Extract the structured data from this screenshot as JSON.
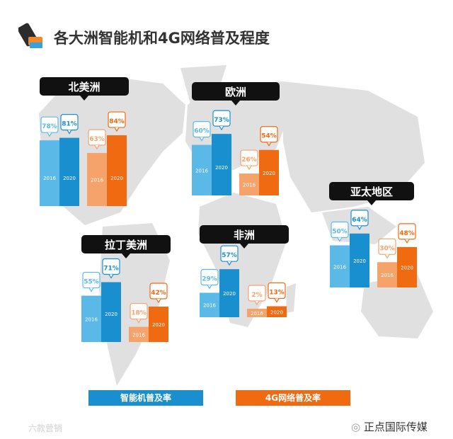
{
  "title": "各大洲智能机和4G网络普及程度",
  "colors": {
    "smart2016": "#5bb9e8",
    "smart2020": "#1a8fd0",
    "lte2016": "#f6a36b",
    "lte2020": "#ef6a10",
    "label_bg": "#111111",
    "map": "#e0e0e0"
  },
  "chart_data": {
    "type": "bar",
    "unit": "%",
    "series": [
      {
        "name": "智能机普及率",
        "years": [
          "2016",
          "2020"
        ]
      },
      {
        "name": "4G网络普及率",
        "years": [
          "2016",
          "2020"
        ]
      }
    ],
    "regions": [
      {
        "name": "北美洲",
        "smartphone": [
          78,
          81
        ],
        "lte": [
          63,
          84
        ]
      },
      {
        "name": "欧洲",
        "smartphone": [
          60,
          73
        ],
        "lte": [
          26,
          54
        ]
      },
      {
        "name": "拉丁美洲",
        "smartphone": [
          55,
          71
        ],
        "lte": [
          18,
          42
        ]
      },
      {
        "name": "非洲",
        "smartphone": [
          29,
          57
        ],
        "lte": [
          2,
          13
        ]
      },
      {
        "name": "亚太地区",
        "smartphone": [
          50,
          64
        ],
        "lte": [
          30,
          48
        ]
      }
    ]
  },
  "legend": {
    "smartphone": "智能机普及率",
    "lte": "4G网络普及率"
  },
  "footer": {
    "left": "六款营销",
    "right": "正点国际传媒"
  }
}
